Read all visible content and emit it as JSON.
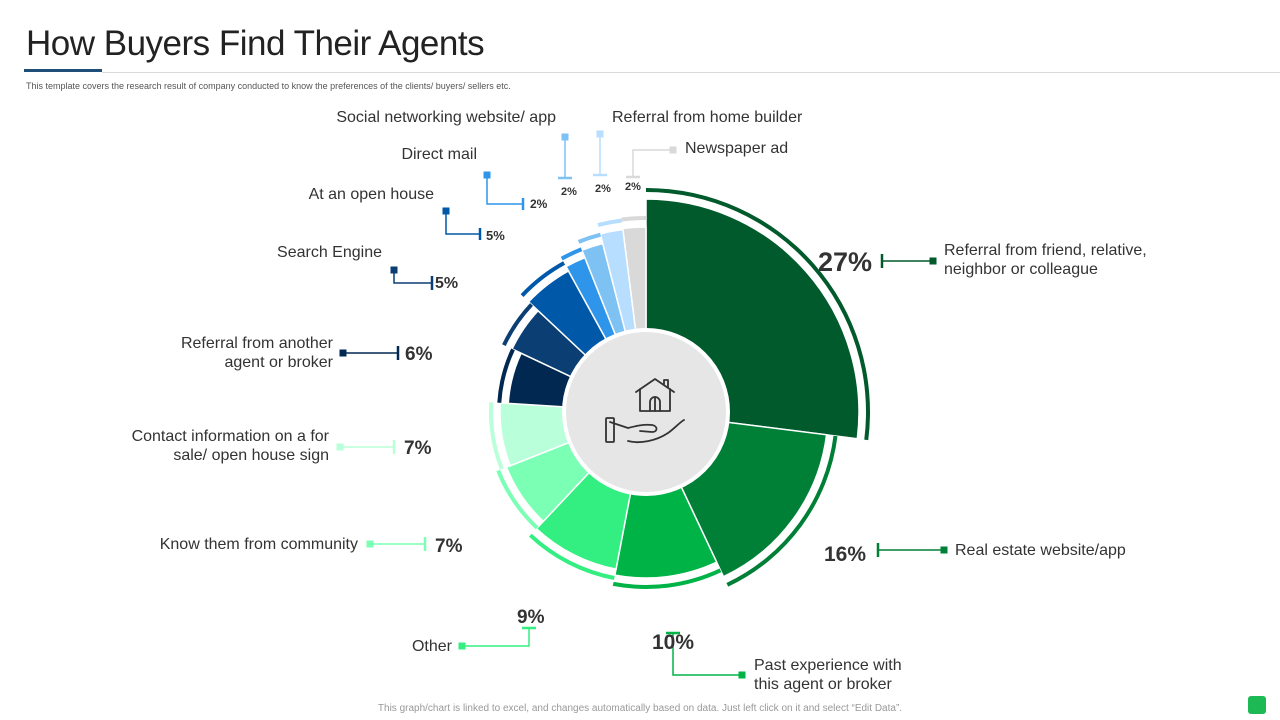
{
  "title": "How Buyers Find Their Agents",
  "subtitle": "This template covers the research result of company conducted to know the preferences of the clients/ buyers/ sellers etc.",
  "footer": "This graph/chart is linked to excel, and changes automatically based on data. Just left click on it and select “Edit Data”.",
  "center_icon": "house-in-hand-icon",
  "chart_data": {
    "type": "pie",
    "style": "donut",
    "value_suffix": "%",
    "slices": [
      {
        "label": "Referral from friend, relative, neighbor or colleague",
        "value": 27,
        "color": "#005a2b"
      },
      {
        "label": "Real estate website/app",
        "value": 16,
        "color": "#007f37"
      },
      {
        "label": "Past experience with this agent or broker",
        "value": 10,
        "color": "#00b347"
      },
      {
        "label": "Other",
        "value": 9,
        "color": "#33ee80"
      },
      {
        "label": "Know them from community",
        "value": 7,
        "color": "#7affb5"
      },
      {
        "label": "Contact information on a for sale/ open house sign",
        "value": 7,
        "color": "#b9ffd9"
      },
      {
        "label": "Referral from another agent or broker",
        "value": 6,
        "color": "#002851"
      },
      {
        "label": "Search Engine",
        "value": 5,
        "color": "#0b3f73"
      },
      {
        "label": "At an open house",
        "value": 5,
        "color": "#0059a8"
      },
      {
        "label": "Direct mail",
        "value": 2,
        "color": "#2f95ea"
      },
      {
        "label": "Social networking website/ app",
        "value": 2,
        "color": "#7ec2f3"
      },
      {
        "label": "Referral from home builder",
        "value": 2,
        "color": "#b8deff"
      },
      {
        "label": "Newspaper ad",
        "value": 2,
        "color": "#d9d9d9"
      }
    ]
  }
}
